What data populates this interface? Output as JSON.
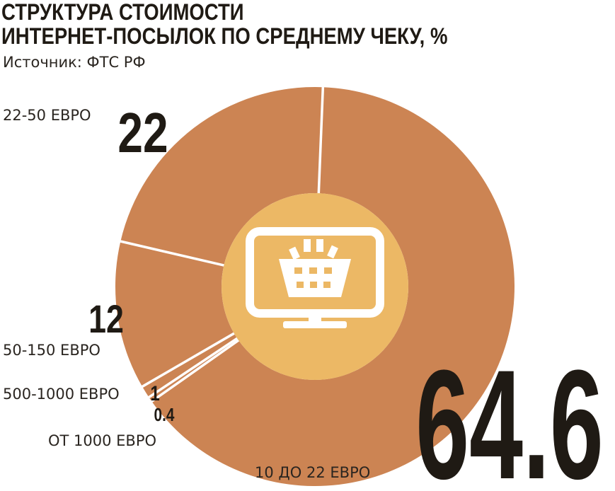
{
  "chart_data": {
    "type": "pie",
    "title_lines": [
      "СТРУКТУРА СТОИМОСТИ",
      "ИНТЕРНЕТ-ПОСЫЛОК ПО СРЕДНЕМУ ЧЕКУ, %"
    ],
    "subtitle": "Источник: ФТС РФ",
    "donut": true,
    "slices": [
      {
        "label": "10 ДО 22 ЕВРО",
        "value": 64.6,
        "value_label": "64.6"
      },
      {
        "label": "ОТ 1000 ЕВРО",
        "value": 0.4,
        "value_label": "0.4"
      },
      {
        "label": "500-1000 ЕВРО",
        "value": 1,
        "value_label": "1"
      },
      {
        "label": "50-150 ЕВРО",
        "value": 12,
        "value_label": "12"
      },
      {
        "label": "22-50 ЕВРО",
        "value": 22,
        "value_label": "22"
      }
    ],
    "colors": {
      "ring": "#cc8453",
      "center": "#ecb865",
      "separator": "#ffffff",
      "icon": "#ffffff"
    },
    "center_icon": "monitor-shopping-basket-icon"
  }
}
